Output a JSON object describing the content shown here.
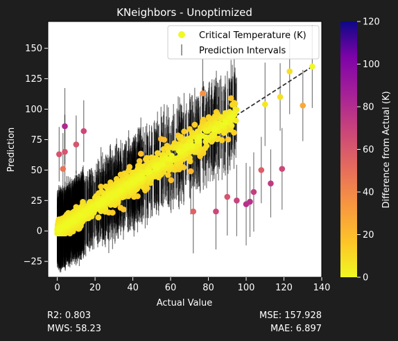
{
  "chart_data": {
    "type": "scatter",
    "title": "KNeighbors - Unoptimized",
    "xlabel": "Actual Value",
    "ylabel": "Prediction",
    "xlim": [
      -5,
      140
    ],
    "ylim": [
      -38,
      172
    ],
    "xticks": [
      "0",
      "20",
      "40",
      "60",
      "80",
      "100",
      "120",
      "140"
    ],
    "yticks": [
      "−25",
      "0",
      "25",
      "50",
      "75",
      "100",
      "125",
      "150"
    ],
    "grid": false,
    "legend": {
      "placement": "top-right",
      "entries": [
        "Critical Temperature (K)",
        "Prediction Intervals"
      ]
    },
    "reference_line": {
      "style": "dashed",
      "from": [
        0,
        0
      ],
      "to": [
        135,
        135
      ],
      "color": "#333333"
    },
    "colorbar": {
      "label": "Difference from Actual (K)",
      "range": [
        0,
        120
      ],
      "ticks": [
        "0",
        "20",
        "40",
        "60",
        "80",
        "100",
        "120"
      ],
      "colormap": "plasma_r"
    },
    "notable_points": [
      {
        "x": 135,
        "y": 135,
        "error": 0
      },
      {
        "x": 123,
        "y": 131,
        "error": 8
      },
      {
        "x": 130,
        "y": 103,
        "error": 27
      },
      {
        "x": 118,
        "y": 110,
        "error": 8
      },
      {
        "x": 110,
        "y": 104,
        "error": 6
      },
      {
        "x": 119,
        "y": 51,
        "error": 68
      },
      {
        "x": 113,
        "y": 39,
        "error": 74
      },
      {
        "x": 108,
        "y": 50,
        "error": 58
      },
      {
        "x": 102,
        "y": 24,
        "error": 78
      },
      {
        "x": 100,
        "y": 22,
        "error": 78
      },
      {
        "x": 104,
        "y": 32,
        "error": 72
      },
      {
        "x": 95,
        "y": 25,
        "error": 70
      },
      {
        "x": 84,
        "y": 16,
        "error": 68
      },
      {
        "x": 90,
        "y": 28,
        "error": 62
      },
      {
        "x": 4,
        "y": 86,
        "error": 82
      },
      {
        "x": 10,
        "y": 71,
        "error": 61
      },
      {
        "x": 4,
        "y": 65,
        "error": 61
      },
      {
        "x": 1,
        "y": 63,
        "error": 62
      },
      {
        "x": 3,
        "y": 51,
        "error": 48
      },
      {
        "x": 14,
        "y": 82,
        "error": 68
      },
      {
        "x": 77,
        "y": 113,
        "error": 36
      },
      {
        "x": 92,
        "y": 109,
        "error": 17
      },
      {
        "x": 72,
        "y": 16,
        "error": 56
      }
    ]
  },
  "stats": {
    "r2": "R2: 0.803",
    "mws": "MWS: 58.23",
    "mse": "MSE: 157.928",
    "mae": "MAE: 6.897"
  }
}
